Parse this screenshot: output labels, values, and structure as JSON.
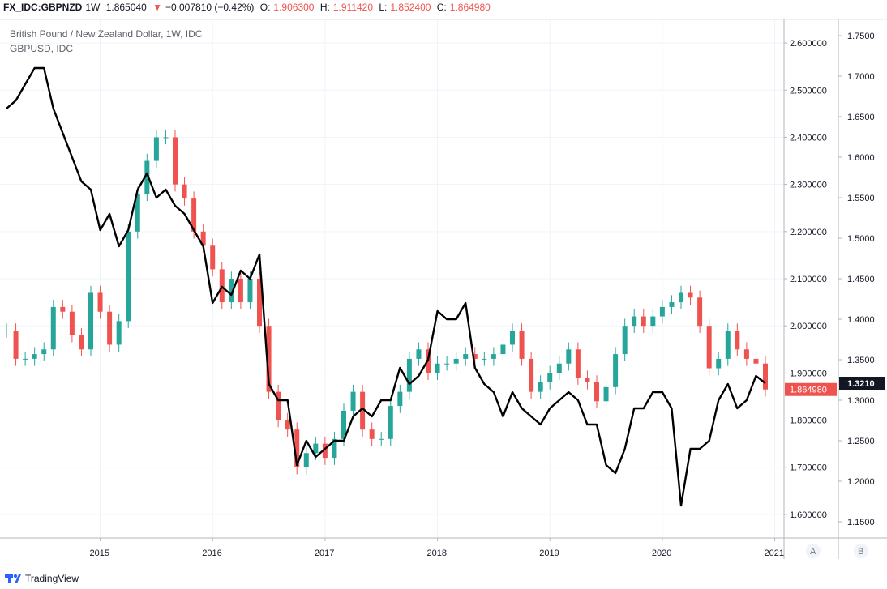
{
  "header": {
    "symbol": "FX_IDC:GBPNZD",
    "interval": "1W",
    "last": "1.865040",
    "change": "−0.007810 (−0.42%)",
    "open_label": "O:",
    "open": "1.906300",
    "high_label": "H:",
    "high": "1.911420",
    "low_label": "L:",
    "low": "1.852400",
    "close_label": "C:",
    "close": "1.864980"
  },
  "legend": {
    "title": "British Pound / New Zealand Dollar, 1W, IDC",
    "overlay": "GBPUSD, IDC"
  },
  "footer": {
    "brand": "TradingView"
  },
  "colors": {
    "up": "#26a69a",
    "down": "#ef5350",
    "overlay": "#000000",
    "grid": "#f0f3fa"
  },
  "chart_data": {
    "type": "line",
    "x_ticks": [
      "2015",
      "2016",
      "2017",
      "2018",
      "2019",
      "2020",
      "2021"
    ],
    "xlim": [
      "2014-03",
      "2020-12"
    ],
    "left_axis_label": "A",
    "right_axis_label": "B",
    "axis_a": {
      "ticks": [
        "2.600000",
        "2.500000",
        "2.400000",
        "2.300000",
        "2.200000",
        "2.100000",
        "2.000000",
        "1.900000",
        "1.800000",
        "1.700000",
        "1.600000"
      ],
      "ylim": [
        1.55,
        2.65
      ],
      "last_value_label": "1.864980"
    },
    "axis_b": {
      "ticks": [
        "1.7500",
        "1.7000",
        "1.6500",
        "1.6000",
        "1.5500",
        "1.5000",
        "1.4500",
        "1.4000",
        "1.3500",
        "1.3000",
        "1.2500",
        "1.2000",
        "1.1500"
      ],
      "ylim": [
        1.13,
        1.77
      ],
      "last_value_label": "1.3210"
    },
    "series": [
      {
        "name": "GBPNZD",
        "style": "candlestick",
        "axis": "A",
        "x": [
          "2014-03",
          "2014-04",
          "2014-05",
          "2014-06",
          "2014-07",
          "2014-08",
          "2014-09",
          "2014-10",
          "2014-11",
          "2014-12",
          "2015-01",
          "2015-02",
          "2015-03",
          "2015-04",
          "2015-05",
          "2015-06",
          "2015-07",
          "2015-08",
          "2015-09",
          "2015-10",
          "2015-11",
          "2015-12",
          "2016-01",
          "2016-02",
          "2016-03",
          "2016-04",
          "2016-05",
          "2016-06",
          "2016-07",
          "2016-08",
          "2016-09",
          "2016-10",
          "2016-11",
          "2016-12",
          "2017-01",
          "2017-02",
          "2017-03",
          "2017-04",
          "2017-05",
          "2017-06",
          "2017-07",
          "2017-08",
          "2017-09",
          "2017-10",
          "2017-11",
          "2017-12",
          "2018-01",
          "2018-02",
          "2018-03",
          "2018-04",
          "2018-05",
          "2018-06",
          "2018-07",
          "2018-08",
          "2018-09",
          "2018-10",
          "2018-11",
          "2018-12",
          "2019-01",
          "2019-02",
          "2019-03",
          "2019-04",
          "2019-05",
          "2019-06",
          "2019-07",
          "2019-08",
          "2019-09",
          "2019-10",
          "2019-11",
          "2019-12",
          "2020-01",
          "2020-02",
          "2020-03",
          "2020-04",
          "2020-05",
          "2020-06",
          "2020-07",
          "2020-08",
          "2020-09",
          "2020-10",
          "2020-11",
          "2020-12"
        ],
        "values": [
          1.99,
          1.93,
          1.93,
          1.94,
          1.95,
          2.04,
          2.03,
          1.98,
          1.95,
          2.07,
          2.03,
          1.96,
          2.01,
          2.2,
          2.28,
          2.35,
          2.4,
          2.4,
          2.3,
          2.27,
          2.2,
          2.17,
          2.12,
          2.05,
          2.1,
          2.05,
          2.1,
          2.0,
          1.86,
          1.8,
          1.78,
          1.7,
          1.73,
          1.75,
          1.72,
          1.76,
          1.82,
          1.86,
          1.78,
          1.76,
          1.76,
          1.83,
          1.86,
          1.93,
          1.95,
          1.9,
          1.92,
          1.92,
          1.93,
          1.94,
          1.93,
          1.93,
          1.94,
          1.96,
          1.99,
          1.93,
          1.86,
          1.88,
          1.9,
          1.92,
          1.95,
          1.89,
          1.88,
          1.84,
          1.87,
          1.94,
          2.0,
          2.02,
          2.0,
          2.02,
          2.04,
          2.05,
          2.07,
          2.06,
          2.0,
          1.91,
          1.93,
          1.99,
          1.95,
          1.93,
          1.92,
          1.865
        ]
      },
      {
        "name": "GBPUSD",
        "style": "line",
        "axis": "B",
        "x": [
          "2014-03",
          "2014-04",
          "2014-05",
          "2014-06",
          "2014-07",
          "2014-08",
          "2014-09",
          "2014-10",
          "2014-11",
          "2014-12",
          "2015-01",
          "2015-02",
          "2015-03",
          "2015-04",
          "2015-05",
          "2015-06",
          "2015-07",
          "2015-08",
          "2015-09",
          "2015-10",
          "2015-11",
          "2015-12",
          "2016-01",
          "2016-02",
          "2016-03",
          "2016-04",
          "2016-05",
          "2016-06",
          "2016-07",
          "2016-08",
          "2016-09",
          "2016-10",
          "2016-11",
          "2016-12",
          "2017-01",
          "2017-02",
          "2017-03",
          "2017-04",
          "2017-05",
          "2017-06",
          "2017-07",
          "2017-08",
          "2017-09",
          "2017-10",
          "2017-11",
          "2017-12",
          "2018-01",
          "2018-02",
          "2018-03",
          "2018-04",
          "2018-05",
          "2018-06",
          "2018-07",
          "2018-08",
          "2018-09",
          "2018-10",
          "2018-11",
          "2018-12",
          "2019-01",
          "2019-02",
          "2019-03",
          "2019-04",
          "2019-05",
          "2019-06",
          "2019-07",
          "2019-08",
          "2019-09",
          "2019-10",
          "2019-11",
          "2019-12",
          "2020-01",
          "2020-02",
          "2020-03",
          "2020-04",
          "2020-05",
          "2020-06",
          "2020-07",
          "2020-08",
          "2020-09",
          "2020-10",
          "2020-11",
          "2020-12"
        ],
        "values": [
          1.66,
          1.67,
          1.69,
          1.71,
          1.71,
          1.66,
          1.63,
          1.6,
          1.57,
          1.56,
          1.51,
          1.53,
          1.49,
          1.51,
          1.56,
          1.58,
          1.55,
          1.56,
          1.54,
          1.53,
          1.51,
          1.49,
          1.42,
          1.44,
          1.43,
          1.46,
          1.45,
          1.48,
          1.32,
          1.3,
          1.3,
          1.22,
          1.25,
          1.23,
          1.24,
          1.25,
          1.25,
          1.28,
          1.29,
          1.28,
          1.3,
          1.3,
          1.34,
          1.32,
          1.33,
          1.35,
          1.41,
          1.4,
          1.4,
          1.42,
          1.34,
          1.32,
          1.31,
          1.28,
          1.31,
          1.29,
          1.28,
          1.27,
          1.29,
          1.3,
          1.31,
          1.3,
          1.27,
          1.27,
          1.22,
          1.21,
          1.24,
          1.29,
          1.29,
          1.31,
          1.31,
          1.29,
          1.17,
          1.24,
          1.24,
          1.25,
          1.3,
          1.32,
          1.29,
          1.3,
          1.33,
          1.321
        ]
      }
    ]
  }
}
